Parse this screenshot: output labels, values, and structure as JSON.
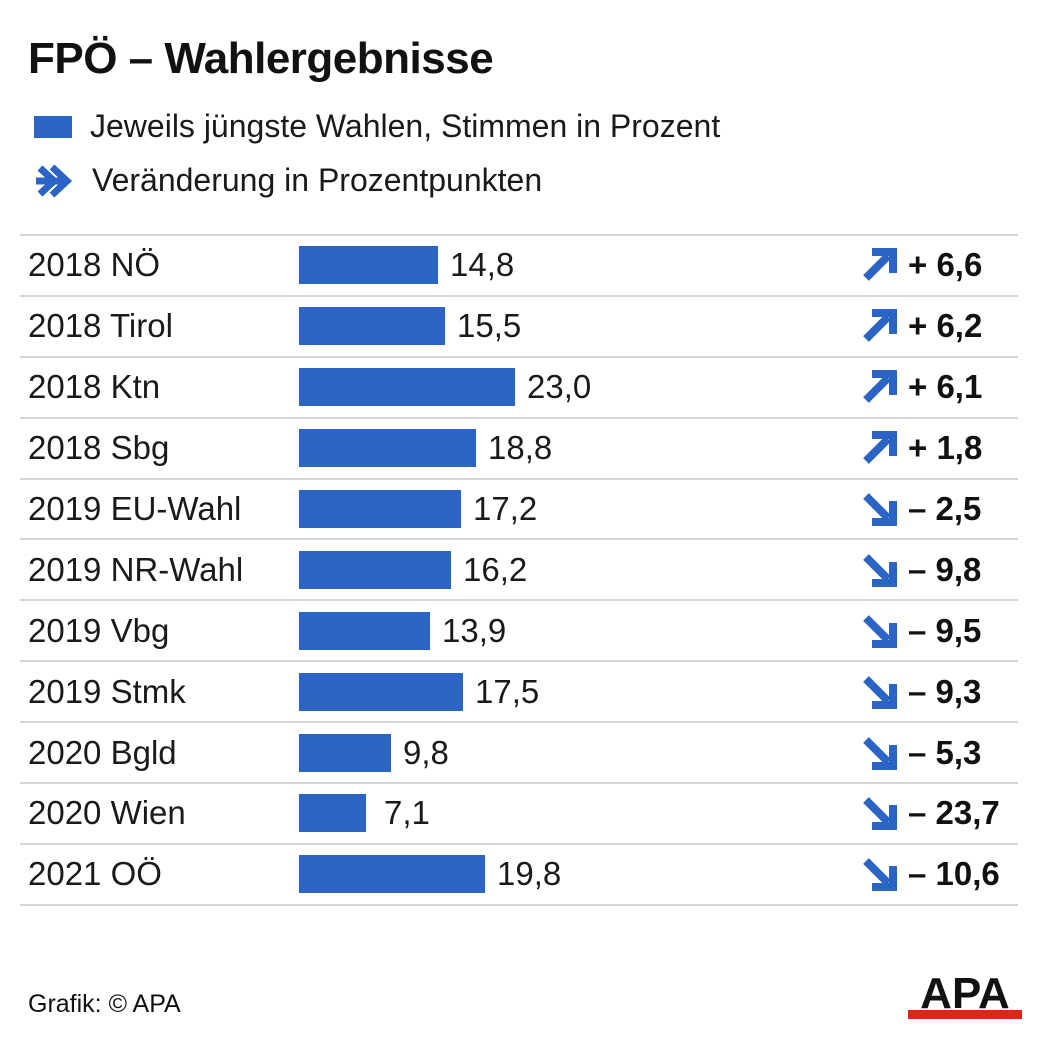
{
  "title": "FPÖ – Wahlergebnisse",
  "legend": {
    "bar_label": "Jeweils jüngste Wahlen, Stimmen in Prozent",
    "arrow_label": "Veränderung in Prozentpunkten",
    "arrow_icon": "arrow-right-icon"
  },
  "colors": {
    "bar": "#2b64c4",
    "arrow": "#2b64c4",
    "logo_red": "#e2231a"
  },
  "chart_data": {
    "type": "bar",
    "orientation": "horizontal",
    "categories": [
      "2018 NÖ",
      "2018 Tirol",
      "2018 Ktn",
      "2018 Sbg",
      "2019 EU-Wahl",
      "2019 NR-Wahl",
      "2019 Vbg",
      "2019 Stmk",
      "2020 Bgld",
      "2020 Wien",
      "2021 OÖ"
    ],
    "values": [
      14.8,
      15.5,
      23.0,
      18.8,
      17.2,
      16.2,
      13.9,
      17.5,
      9.8,
      7.1,
      19.8
    ],
    "value_labels": [
      "14,8",
      "15,5",
      "23,0",
      "18,8",
      "17,2",
      "16,2",
      "13,9",
      "17,5",
      "9,8",
      "7,1",
      "19,8"
    ],
    "changes": [
      6.6,
      6.2,
      6.1,
      1.8,
      -2.5,
      -9.8,
      -9.5,
      -9.3,
      -5.3,
      -23.7,
      -10.6
    ],
    "change_labels": [
      "+ 6,6",
      "+ 6,2",
      "+ 6,1",
      "+ 1,8",
      "– 2,5",
      "– 9,8",
      "– 9,5",
      "– 9,3",
      "– 5,3",
      "– 23,7",
      "– 10,6"
    ],
    "xlim": [
      0,
      23.0
    ],
    "grid": false
  },
  "footer": {
    "credit": "Grafik: © APA"
  },
  "logo": {
    "text": "APA"
  }
}
